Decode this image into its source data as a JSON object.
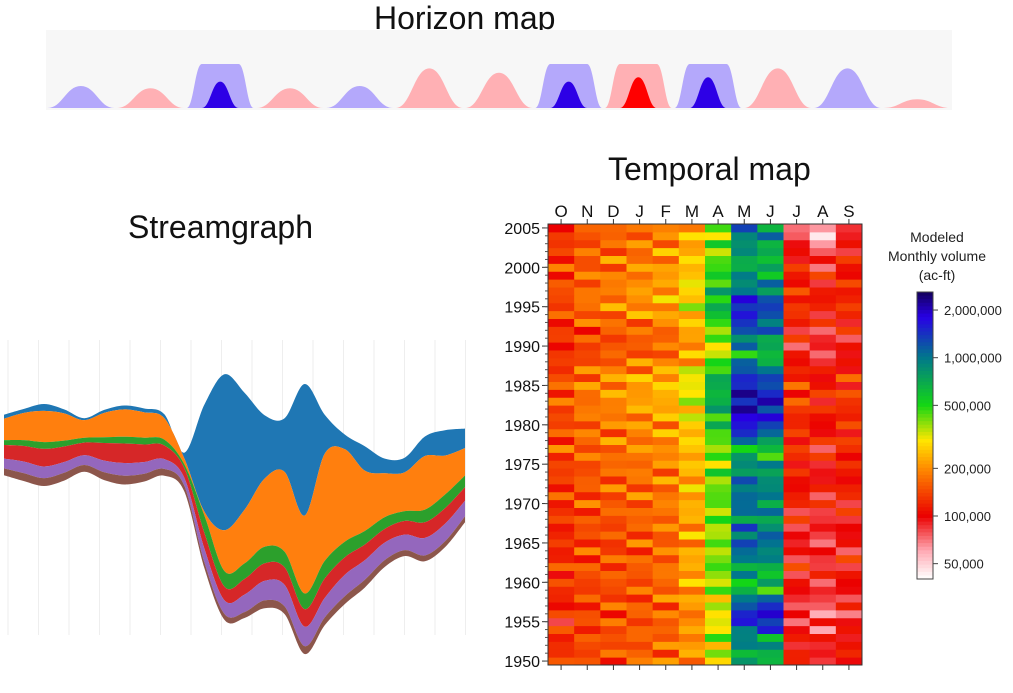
{
  "horizon": {
    "title": "Horizon map",
    "colors": {
      "blue_light": "#b4a8fb",
      "blue_dark": "#2d00e6",
      "red_light": "#ffb0b4",
      "red_dark": "#ff0000"
    },
    "bumps": [
      {
        "sign": "neg",
        "bands": 1
      },
      {
        "sign": "pos",
        "bands": 1
      },
      {
        "sign": "neg",
        "bands": 2
      },
      {
        "sign": "pos",
        "bands": 1
      },
      {
        "sign": "neg",
        "bands": 1
      },
      {
        "sign": "pos",
        "bands": 1
      },
      {
        "sign": "pos",
        "bands": 1
      },
      {
        "sign": "neg",
        "bands": 2
      },
      {
        "sign": "pos",
        "bands": 2
      },
      {
        "sign": "neg",
        "bands": 2
      },
      {
        "sign": "pos",
        "bands": 1
      },
      {
        "sign": "neg",
        "bands": 1
      },
      {
        "sign": "pos",
        "bands": 1
      }
    ]
  },
  "streamgraph": {
    "title": "Streamgraph",
    "layer_colors": [
      "#1f77b4",
      "#ff7f0e",
      "#2ca02c",
      "#d62728",
      "#9467bd",
      "#8c564b"
    ]
  },
  "temporal": {
    "title": "Temporal map",
    "months": [
      "O",
      "N",
      "D",
      "J",
      "F",
      "M",
      "A",
      "M",
      "J",
      "J",
      "A",
      "S"
    ],
    "year_ticks": [
      "2005",
      "2000",
      "1995",
      "1990",
      "1985",
      "1980",
      "1975",
      "1970",
      "1965",
      "1960",
      "1955",
      "1950"
    ],
    "legend_title": [
      "Modeled",
      "Monthly volume",
      "(ac-ft)"
    ],
    "legend_ticks": [
      "2,000,000",
      "1,000,000",
      "500,000",
      "200,000",
      "100,000",
      "50,000"
    ]
  },
  "chart_data": [
    {
      "type": "area",
      "title": "Horizon map",
      "series": [
        {
          "values": [
            -0.5,
            0.45,
            -1.6,
            0.45,
            -0.5,
            0.9,
            0.8,
            -1.6,
            1.7,
            -1.7,
            0.9,
            -0.9,
            0.2
          ]
        }
      ]
    },
    {
      "type": "area",
      "title": "Streamgraph",
      "x": [
        0,
        1,
        2,
        3,
        4,
        5,
        6,
        7,
        8,
        9,
        10,
        11,
        12,
        13,
        14,
        15,
        16,
        17,
        18,
        19,
        20,
        21,
        22,
        23
      ],
      "series": [
        {
          "values": [
            4,
            4,
            7,
            4,
            2,
            3,
            4,
            4,
            4,
            6,
            110,
            160,
            120,
            65,
            55,
            135,
            40,
            15,
            25,
            15,
            15,
            20,
            26,
            20
          ]
        },
        {
          "values": [
            22,
            28,
            32,
            28,
            18,
            25,
            28,
            26,
            22,
            6,
            4,
            42,
            55,
            70,
            82,
            80,
            110,
            95,
            62,
            45,
            40,
            55,
            40,
            28
          ]
        },
        {
          "values": [
            5,
            6,
            7,
            6,
            5,
            6,
            7,
            7,
            6,
            4,
            18,
            16,
            16,
            17,
            16,
            16,
            18,
            16,
            14,
            12,
            10,
            13,
            14,
            12
          ]
        },
        {
          "values": [
            14,
            16,
            18,
            16,
            13,
            18,
            20,
            18,
            14,
            10,
            16,
            14,
            16,
            18,
            18,
            18,
            20,
            18,
            16,
            14,
            14,
            16,
            16,
            14
          ]
        },
        {
          "values": [
            10,
            12,
            12,
            11,
            10,
            12,
            13,
            12,
            10,
            8,
            14,
            14,
            18,
            20,
            22,
            20,
            20,
            22,
            20,
            18,
            16,
            18,
            18,
            16
          ]
        },
        {
          "values": [
            7,
            8,
            8,
            8,
            7,
            8,
            9,
            8,
            7,
            6,
            6,
            6,
            6,
            8,
            8,
            8,
            8,
            8,
            8,
            7,
            6,
            6,
            6,
            6
          ]
        }
      ]
    },
    {
      "type": "heatmap",
      "title": "Temporal map",
      "x": [
        "O",
        "N",
        "D",
        "J",
        "F",
        "M",
        "A",
        "M",
        "J",
        "J",
        "A",
        "S"
      ],
      "y_range": [
        1950,
        2006
      ],
      "colorbar_label": "Modeled Monthly volume (ac-ft)",
      "colorbar_ticks": [
        2000000,
        1000000,
        500000,
        200000,
        100000,
        50000
      ],
      "zlim": [
        40000,
        2600000
      ],
      "row_values_note": "values per row: Oct..Sep",
      "rows": [
        {
          "year": 1950,
          "values": [
            130000,
            150000,
            145000,
            160000,
            170000,
            200000,
            300000,
            700000,
            650000,
            110000,
            95000,
            110000
          ]
        },
        {
          "year": 1953,
          "values": [
            125000,
            140000,
            150000,
            155000,
            165000,
            210000,
            360000,
            900000,
            800000,
            100000,
            90000,
            105000
          ]
        },
        {
          "year": 1956,
          "values": [
            110000,
            135000,
            145000,
            150000,
            160000,
            190000,
            300000,
            1600000,
            1900000,
            80000,
            70000,
            85000
          ]
        },
        {
          "year": 1959,
          "values": [
            125000,
            140000,
            145000,
            150000,
            170000,
            220000,
            350000,
            600000,
            550000,
            95000,
            85000,
            95000
          ]
        },
        {
          "year": 1962,
          "values": [
            130000,
            145000,
            150000,
            155000,
            170000,
            230000,
            420000,
            800000,
            700000,
            105000,
            95000,
            105000
          ]
        },
        {
          "year": 1965,
          "values": [
            120000,
            140000,
            140000,
            150000,
            165000,
            210000,
            380000,
            1200000,
            1100000,
            90000,
            80000,
            95000
          ]
        },
        {
          "year": 1968,
          "values": [
            125000,
            145000,
            150000,
            160000,
            175000,
            220000,
            400000,
            900000,
            800000,
            100000,
            90000,
            100000
          ]
        },
        {
          "year": 1971,
          "values": [
            135000,
            150000,
            160000,
            165000,
            180000,
            240000,
            420000,
            1100000,
            900000,
            110000,
            100000,
            110000
          ]
        },
        {
          "year": 1974,
          "values": [
            130000,
            150000,
            160000,
            170000,
            180000,
            230000,
            420000,
            950000,
            850000,
            110000,
            95000,
            110000
          ]
        },
        {
          "year": 1977,
          "values": [
            150000,
            165000,
            175000,
            190000,
            200000,
            250000,
            380000,
            600000,
            500000,
            120000,
            105000,
            120000
          ]
        },
        {
          "year": 1980,
          "values": [
            140000,
            165000,
            175000,
            190000,
            205000,
            270000,
            550000,
            1800000,
            1400000,
            120000,
            105000,
            120000
          ]
        },
        {
          "year": 1983,
          "values": [
            150000,
            180000,
            200000,
            220000,
            240000,
            320000,
            700000,
            1900000,
            1700000,
            140000,
            115000,
            130000
          ]
        },
        {
          "year": 1986,
          "values": [
            145000,
            180000,
            200000,
            220000,
            240000,
            320000,
            650000,
            1500000,
            1200000,
            130000,
            110000,
            125000
          ]
        },
        {
          "year": 1989,
          "values": [
            120000,
            140000,
            150000,
            155000,
            165000,
            210000,
            330000,
            650000,
            550000,
            95000,
            80000,
            95000
          ]
        },
        {
          "year": 1992,
          "values": [
            125000,
            140000,
            150000,
            160000,
            170000,
            220000,
            400000,
            1200000,
            1000000,
            100000,
            90000,
            100000
          ]
        },
        {
          "year": 1995,
          "values": [
            145000,
            175000,
            190000,
            210000,
            230000,
            300000,
            650000,
            1700000,
            1300000,
            130000,
            110000,
            125000
          ]
        },
        {
          "year": 1998,
          "values": [
            140000,
            165000,
            180000,
            200000,
            215000,
            280000,
            550000,
            900000,
            800000,
            120000,
            105000,
            120000
          ]
        },
        {
          "year": 2001,
          "values": [
            135000,
            160000,
            170000,
            185000,
            200000,
            250000,
            420000,
            700000,
            600000,
            110000,
            90000,
            110000
          ]
        },
        {
          "year": 2004,
          "values": [
            125000,
            150000,
            160000,
            170000,
            185000,
            230000,
            400000,
            1000000,
            850000,
            80000,
            50000,
            90000
          ]
        }
      ]
    }
  ]
}
